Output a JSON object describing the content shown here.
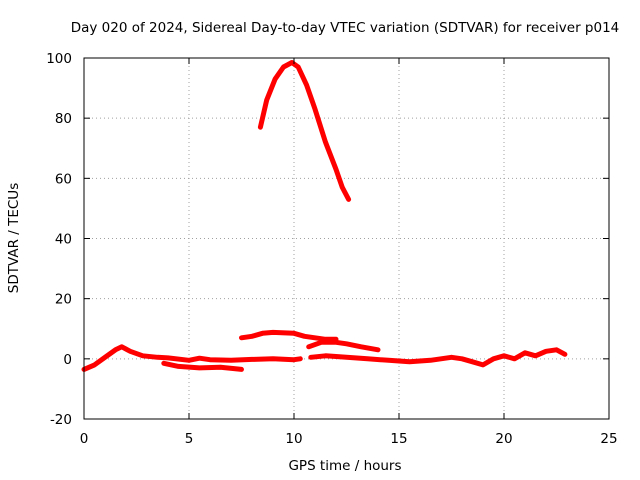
{
  "chart_data": {
    "type": "line",
    "title": "Day 020 of 2024, Sidereal Day-to-day VTEC variation (SDTVAR) for receiver p014",
    "xlabel": "GPS time / hours",
    "ylabel": "SDTVAR / TECUs",
    "xlim": [
      0,
      25
    ],
    "ylim": [
      -20,
      100
    ],
    "xticks": [
      0,
      5,
      10,
      15,
      20,
      25
    ],
    "yticks": [
      -20,
      0,
      20,
      40,
      60,
      80,
      100
    ],
    "grid": true,
    "series_color": "#ff0000",
    "series": [
      {
        "name": "track-1",
        "points": [
          [
            0,
            -3.5
          ],
          [
            0.5,
            -2
          ],
          [
            1,
            0.5
          ],
          [
            1.5,
            3
          ],
          [
            1.8,
            4
          ],
          [
            2.2,
            2.5
          ],
          [
            2.8,
            1
          ],
          [
            3.5,
            0.5
          ],
          [
            4,
            0.3
          ],
          [
            5,
            -0.5
          ],
          [
            5.5,
            0.2
          ],
          [
            6,
            -0.3
          ],
          [
            7,
            -0.5
          ],
          [
            8,
            -0.2
          ],
          [
            9,
            0
          ],
          [
            10,
            -0.3
          ],
          [
            10.3,
            0
          ]
        ]
      },
      {
        "name": "track-2",
        "points": [
          [
            3.8,
            -1.5
          ],
          [
            4.5,
            -2.5
          ],
          [
            5.5,
            -3
          ],
          [
            6.5,
            -2.8
          ],
          [
            7.5,
            -3.5
          ]
        ]
      },
      {
        "name": "track-3",
        "points": [
          [
            7.5,
            7
          ],
          [
            8,
            7.5
          ],
          [
            8.5,
            8.5
          ],
          [
            9,
            8.8
          ],
          [
            10,
            8.5
          ],
          [
            10.5,
            7.5
          ],
          [
            11,
            7
          ],
          [
            11.5,
            6.5
          ],
          [
            12,
            6.5
          ]
        ]
      },
      {
        "name": "track-4",
        "points": [
          [
            10.7,
            4
          ],
          [
            11.3,
            5.5
          ],
          [
            12,
            5.5
          ],
          [
            12.5,
            5
          ],
          [
            13.2,
            4
          ],
          [
            14,
            3
          ]
        ]
      },
      {
        "name": "track-5",
        "points": [
          [
            8.4,
            77
          ],
          [
            8.7,
            86
          ],
          [
            9.1,
            93
          ],
          [
            9.5,
            97
          ],
          [
            9.9,
            98.5
          ],
          [
            10.2,
            97
          ],
          [
            10.6,
            91
          ],
          [
            11,
            83
          ],
          [
            11.5,
            72
          ],
          [
            12,
            63
          ],
          [
            12.3,
            57
          ],
          [
            12.6,
            53
          ]
        ]
      },
      {
        "name": "track-6",
        "points": [
          [
            10.8,
            0.5
          ],
          [
            11.5,
            1
          ],
          [
            12.5,
            0.5
          ],
          [
            13.5,
            0
          ],
          [
            14.5,
            -0.5
          ],
          [
            15.5,
            -1
          ],
          [
            16.5,
            -0.5
          ],
          [
            17.5,
            0.5
          ],
          [
            18,
            0
          ],
          [
            18.5,
            -1
          ],
          [
            19,
            -2
          ],
          [
            19.5,
            0
          ],
          [
            20,
            1
          ],
          [
            20.5,
            0
          ],
          [
            21,
            2
          ],
          [
            21.5,
            1
          ],
          [
            22,
            2.5
          ],
          [
            22.5,
            3
          ],
          [
            22.9,
            1.5
          ]
        ]
      }
    ]
  }
}
